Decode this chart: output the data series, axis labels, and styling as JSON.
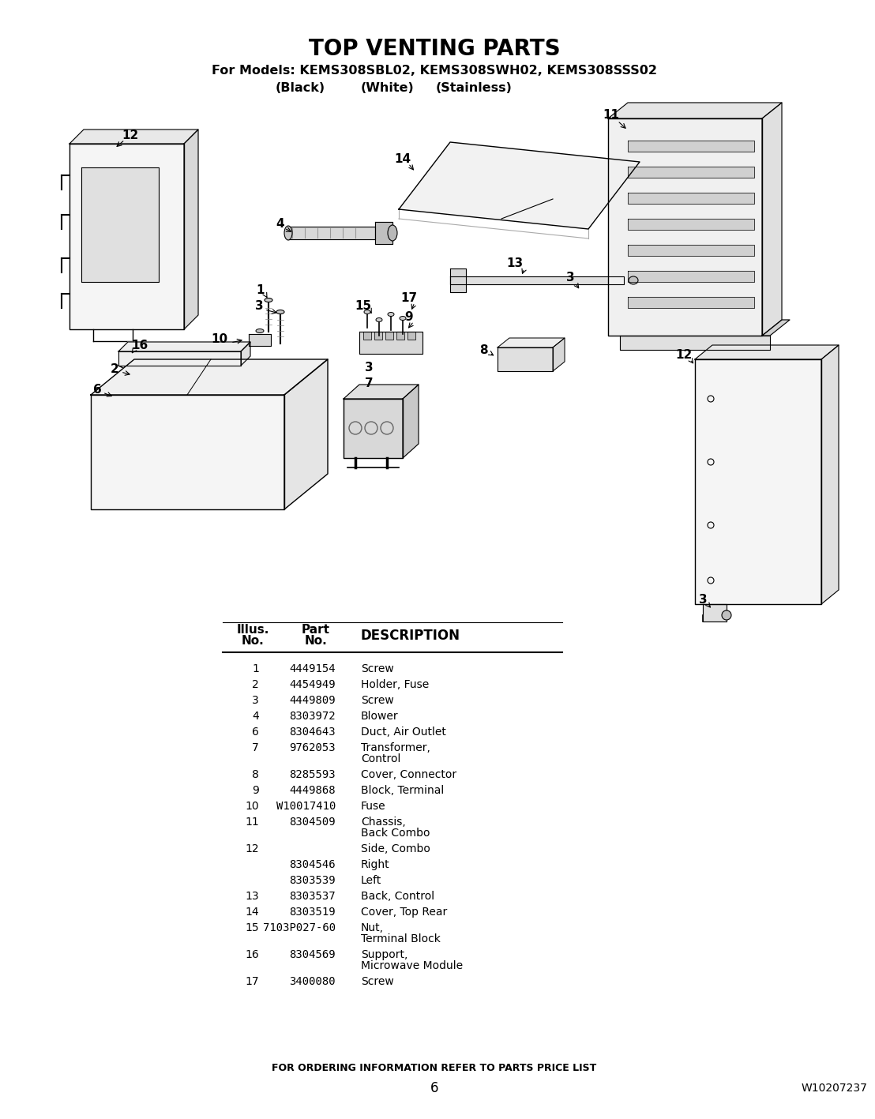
{
  "title": "TOP VENTING PARTS",
  "subtitle": "For Models: KEMS308SBL02, KEMS308SWH02, KEMS308SSS02",
  "subtitle2_parts": [
    "(Black)",
    "(White)",
    "(Stainless)"
  ],
  "parts": [
    {
      "illus": "1",
      "part": "4449154",
      "desc": [
        "Screw"
      ]
    },
    {
      "illus": "2",
      "part": "4454949",
      "desc": [
        "Holder, Fuse"
      ]
    },
    {
      "illus": "3",
      "part": "4449809",
      "desc": [
        "Screw"
      ]
    },
    {
      "illus": "4",
      "part": "8303972",
      "desc": [
        "Blower"
      ]
    },
    {
      "illus": "6",
      "part": "8304643",
      "desc": [
        "Duct, Air Outlet"
      ]
    },
    {
      "illus": "7",
      "part": "9762053",
      "desc": [
        "Transformer,",
        "Control"
      ]
    },
    {
      "illus": "8",
      "part": "8285593",
      "desc": [
        "Cover, Connector"
      ]
    },
    {
      "illus": "9",
      "part": "4449868",
      "desc": [
        "Block, Terminal"
      ]
    },
    {
      "illus": "10",
      "part": "W10017410",
      "desc": [
        "Fuse"
      ]
    },
    {
      "illus": "11",
      "part": "8304509",
      "desc": [
        "Chassis,",
        "Back Combo"
      ]
    },
    {
      "illus": "12",
      "part": "",
      "desc": [
        "Side, Combo"
      ]
    },
    {
      "illus": "",
      "part": "8304546",
      "desc": [
        "Right"
      ]
    },
    {
      "illus": "",
      "part": "8303539",
      "desc": [
        "Left"
      ]
    },
    {
      "illus": "13",
      "part": "8303537",
      "desc": [
        "Back, Control"
      ]
    },
    {
      "illus": "14",
      "part": "8303519",
      "desc": [
        "Cover, Top Rear"
      ]
    },
    {
      "illus": "15",
      "part": "7103P027-60",
      "desc": [
        "Nut,",
        "Terminal Block"
      ]
    },
    {
      "illus": "16",
      "part": "8304569",
      "desc": [
        "Support,",
        "Microwave Module"
      ]
    },
    {
      "illus": "17",
      "part": "3400080",
      "desc": [
        "Screw"
      ]
    }
  ],
  "footer_center": "FOR ORDERING INFORMATION REFER TO PARTS PRICE LIST",
  "footer_page": "6",
  "footer_right": "W10207237"
}
